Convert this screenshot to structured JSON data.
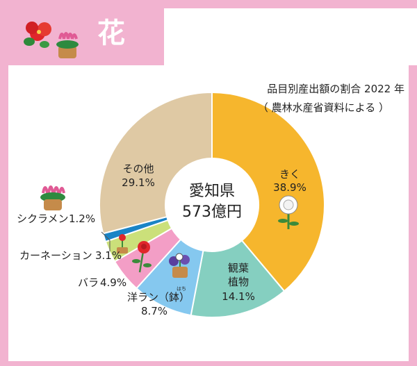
{
  "page": {
    "title": "花",
    "source_line1": "品目別産出額の割合 2022 年",
    "source_line2": "（ 農林水産省資料による ）"
  },
  "chart_data": {
    "type": "pie",
    "donut": true,
    "center_label": [
      "愛知県",
      "573億円"
    ],
    "slices": [
      {
        "label": "きく",
        "value": 38.9,
        "value_label": "38.9%",
        "color": "#f6b62d"
      },
      {
        "label": "観葉植物",
        "label_lines": [
          "観葉",
          "植物"
        ],
        "value": 14.1,
        "value_label": "14.1%",
        "color": "#85cfc0"
      },
      {
        "label": "洋ラン（鉢）",
        "label_lines": [
          "洋ラン（鉢）"
        ],
        "ruby": "はち",
        "value": 8.7,
        "value_label": "8.7%",
        "color": "#85c8ef"
      },
      {
        "label": "バラ",
        "value": 4.9,
        "value_label": "4.9%",
        "color": "#f39ec6"
      },
      {
        "label": "カーネーション",
        "value": 3.1,
        "value_label": "3.1%",
        "color": "#cbe07a"
      },
      {
        "label": "シクラメン",
        "value": 1.2,
        "value_label": "1.2%",
        "color": "#1a84c6"
      },
      {
        "label": "その他",
        "value": 29.1,
        "value_label": "29.1%",
        "color": "#dfc9a4"
      }
    ]
  }
}
